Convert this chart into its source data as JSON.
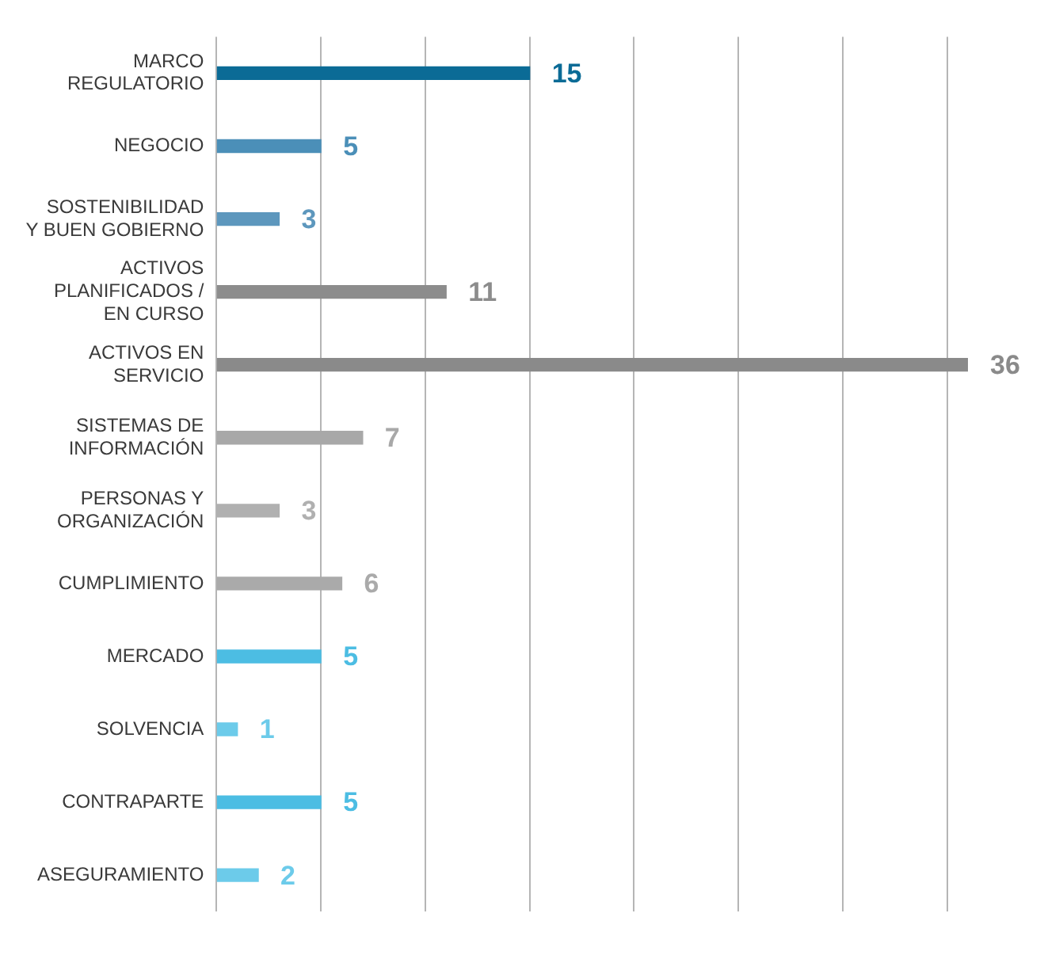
{
  "chart_data": {
    "type": "bar",
    "orientation": "horizontal",
    "categories": [
      "MARCO REGULATORIO",
      "NEGOCIO",
      "SOSTENIBILIDAD Y BUEN GOBIERNO",
      "ACTIVOS PLANIFICADOS / EN CURSO",
      "ACTIVOS EN SERVICIO",
      "SISTEMAS DE INFORMACIÓN",
      "PERSONAS Y ORGANIZACIÓN",
      "CUMPLIMIENTO",
      "MERCADO",
      "SOLVENCIA",
      "CONTRAPARTE",
      "ASEGURAMIENTO"
    ],
    "values": [
      15,
      5,
      3,
      11,
      36,
      7,
      3,
      6,
      5,
      1,
      5,
      2
    ],
    "colors": [
      "#0b6b96",
      "#4b8fb8",
      "#5d97bd",
      "#8c8c8c",
      "#8a8a8a",
      "#a8a8a8",
      "#b0b0b0",
      "#aaaaaa",
      "#4cbde3",
      "#6ccbea",
      "#4cbde3",
      "#6ccbea"
    ],
    "xlim": [
      0,
      36
    ],
    "xticks": [
      {
        "value": 0,
        "label": null
      },
      {
        "value": 5,
        "label": null
      },
      {
        "value": 10,
        "label": null
      },
      {
        "value": 15,
        "label": null
      },
      {
        "value": 20,
        "label": null
      },
      {
        "value": 25,
        "label": null
      },
      {
        "value": 30,
        "label": null
      },
      {
        "value": 35,
        "label": null
      }
    ],
    "tick_labels": "y",
    "grid": "x",
    "data_labels": true
  }
}
